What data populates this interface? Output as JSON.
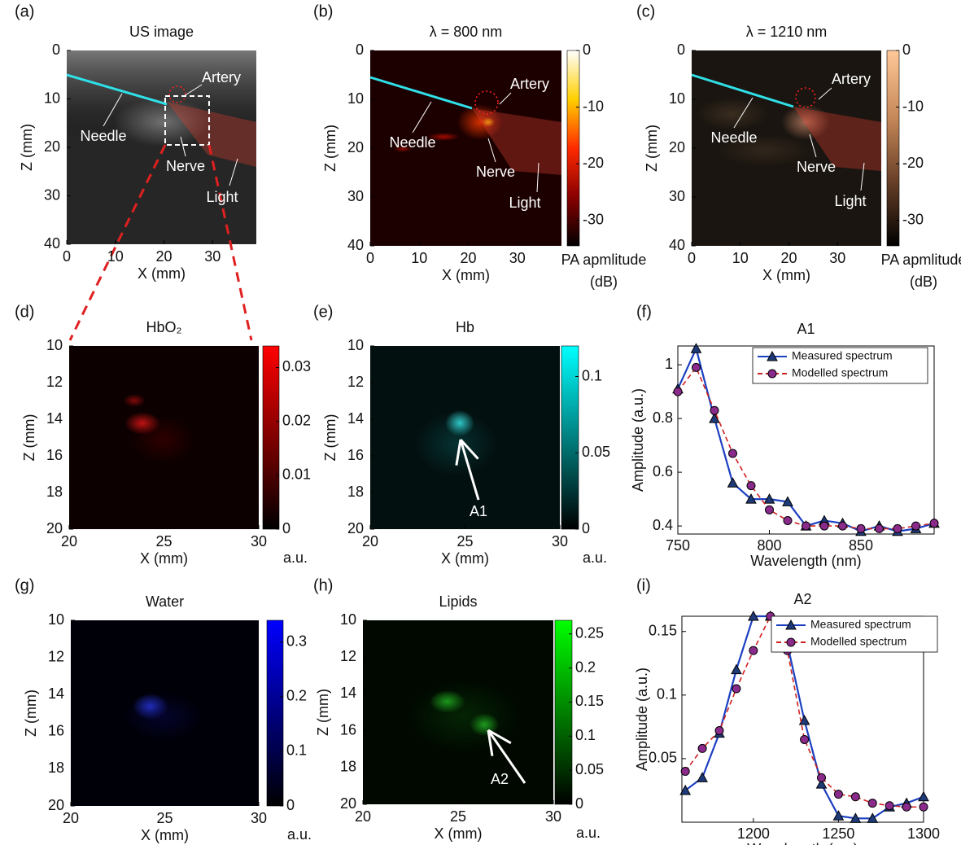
{
  "panels": [
    {
      "letter": "(a)",
      "title": "US image",
      "xlabel": "X (mm)",
      "ylabel": "Z (mm)",
      "xlim": [
        0,
        39
      ],
      "xticks": [
        0,
        10,
        20,
        30
      ],
      "zlim": [
        0,
        40
      ],
      "zticks": [
        0,
        10,
        20,
        30,
        40
      ],
      "annotations": [
        "Artery",
        "Needle",
        "Nerve",
        "Light"
      ]
    },
    {
      "letter": "(b)",
      "title": "λ = 800 nm",
      "xlabel": "X (mm)",
      "ylabel": "Z (mm)",
      "xlim": [
        0,
        39
      ],
      "xticks": [
        0,
        10,
        20,
        30
      ],
      "zlim": [
        0,
        40
      ],
      "zticks": [
        0,
        10,
        20,
        30,
        40
      ],
      "annotations": [
        "Artery",
        "Needle",
        "Nerve",
        "Light"
      ],
      "colorbar": {
        "lim": [
          -34.5,
          0
        ],
        "ticks": [
          0,
          -10,
          -20,
          -30
        ],
        "label": [
          "PA apmlitude",
          "(dB)"
        ],
        "colormap": [
          "#000000",
          "#8a0000",
          "#ff2a00",
          "#ffd000",
          "#ffffff"
        ]
      }
    },
    {
      "letter": "(c)",
      "title": "λ = 1210 nm",
      "xlabel": "X (mm)",
      "ylabel": "Z (mm)",
      "xlim": [
        0,
        39
      ],
      "xticks": [
        0,
        10,
        20,
        30
      ],
      "zlim": [
        0,
        40
      ],
      "zticks": [
        0,
        10,
        20,
        30,
        40
      ],
      "annotations": [
        "Artery",
        "Needle",
        "Nerve",
        "Light"
      ],
      "colorbar": {
        "lim": [
          -34.5,
          0
        ],
        "ticks": [
          0,
          -10,
          -20,
          -30
        ],
        "label": [
          "PA apmlitude",
          "(dB)"
        ],
        "colormap": [
          "#000000",
          "#6a4028",
          "#c88a5a",
          "#ffc898"
        ]
      }
    },
    {
      "letter": "(d)",
      "title": "HbO₂",
      "xlabel": "X (mm)",
      "ylabel": "Z (mm)",
      "xlim": [
        20,
        30
      ],
      "xticks": [
        20,
        25,
        30
      ],
      "zlim": [
        10,
        20
      ],
      "zticks": [
        10,
        12,
        14,
        16,
        18,
        20
      ],
      "annotations": [],
      "colorbar": {
        "lim": [
          0,
          0.034
        ],
        "ticks": [
          0.03,
          0.02,
          0.01,
          0
        ],
        "label": [
          "a.u."
        ],
        "colormap": [
          "#000000",
          "#ff0000"
        ]
      }
    },
    {
      "letter": "(e)",
      "title": "Hb",
      "xlabel": "X (mm)",
      "ylabel": "Z (mm)",
      "xlim": [
        20,
        30
      ],
      "xticks": [
        20,
        25,
        30
      ],
      "zlim": [
        10,
        20
      ],
      "zticks": [
        10,
        12,
        14,
        16,
        18,
        20
      ],
      "annotations": [
        "A1"
      ],
      "colorbar": {
        "lim": [
          0,
          0.12
        ],
        "ticks": [
          0.1,
          0.05,
          0
        ],
        "label": [
          "a.u."
        ],
        "colormap": [
          "#000000",
          "#00ffff"
        ]
      }
    },
    {
      "letter": "(g)",
      "title": "Water",
      "xlabel": "X (mm)",
      "ylabel": "Z (mm)",
      "xlim": [
        20,
        30
      ],
      "xticks": [
        20,
        25,
        30
      ],
      "zlim": [
        10,
        20
      ],
      "zticks": [
        10,
        12,
        14,
        16,
        18,
        20
      ],
      "annotations": [],
      "colorbar": {
        "lim": [
          0,
          0.34
        ],
        "ticks": [
          0.3,
          0.2,
          0.1,
          0
        ],
        "label": [
          "a.u."
        ],
        "colormap": [
          "#000000",
          "#0000ff"
        ]
      }
    },
    {
      "letter": "(h)",
      "title": "Lipids",
      "xlabel": "X (mm)",
      "ylabel": "Z (mm)",
      "xlim": [
        20,
        30
      ],
      "xticks": [
        20,
        25,
        30
      ],
      "zlim": [
        10,
        20
      ],
      "zticks": [
        10,
        12,
        14,
        16,
        18,
        20
      ],
      "annotations": [
        "A2"
      ],
      "colorbar": {
        "lim": [
          0,
          0.27
        ],
        "ticks": [
          0.25,
          0.2,
          0.15,
          0.1,
          0.05,
          0
        ],
        "label": [
          "a.u."
        ],
        "colormap": [
          "#000000",
          "#00ff00"
        ]
      }
    }
  ],
  "chart_data": [
    {
      "type": "line",
      "letter": "(f)",
      "title": "A1",
      "xlabel": "Wavelength (nm)",
      "ylabel": "Amplitude (a.u.)",
      "x": [
        750,
        760,
        770,
        780,
        790,
        800,
        810,
        820,
        830,
        840,
        850,
        860,
        870,
        880,
        890
      ],
      "xlim": [
        750,
        890
      ],
      "xticks": [
        750,
        800,
        850
      ],
      "ylim": [
        0.37,
        1.07
      ],
      "yticks": [
        0.4,
        0.6,
        0.8,
        1
      ],
      "legend": "upper right",
      "series": [
        {
          "name": "Measured spectrum",
          "color": "#1c3fc0",
          "marker": "triangle",
          "marker_color": "#1f3a78",
          "dashed": false,
          "values": [
            0.91,
            1.06,
            0.8,
            0.56,
            0.5,
            0.5,
            0.49,
            0.4,
            0.42,
            0.41,
            0.38,
            0.4,
            0.38,
            0.39,
            0.41
          ]
        },
        {
          "name": "Modelled spectrum",
          "color": "#d02020",
          "marker": "circle",
          "marker_color": "#8a2a8a",
          "dashed": true,
          "values": [
            0.9,
            0.99,
            0.83,
            0.67,
            0.55,
            0.46,
            0.42,
            0.4,
            0.4,
            0.4,
            0.39,
            0.39,
            0.39,
            0.4,
            0.41
          ]
        }
      ]
    },
    {
      "type": "line",
      "letter": "(i)",
      "title": "A2",
      "xlabel": "Wavelength (nm)",
      "ylabel": "Amplitude (a.u.)",
      "x": [
        1160,
        1170,
        1180,
        1190,
        1200,
        1210,
        1220,
        1230,
        1240,
        1250,
        1260,
        1270,
        1280,
        1290,
        1300
      ],
      "xlim": [
        1158,
        1300
      ],
      "xticks": [
        1200,
        1250,
        1300
      ],
      "ylim": [
        0,
        0.162
      ],
      "yticks": [
        0.05,
        0.1,
        0.15
      ],
      "legend": "upper right",
      "series": [
        {
          "name": "Measured spectrum",
          "color": "#1c3fc0",
          "marker": "triangle",
          "marker_color": "#1f3a78",
          "dashed": false,
          "values": [
            0.025,
            0.035,
            0.07,
            0.12,
            0.162,
            0.162,
            0.14,
            0.08,
            0.03,
            0.005,
            0.003,
            0.003,
            0.012,
            0.015,
            0.02
          ]
        },
        {
          "name": "Modelled spectrum",
          "color": "#d02020",
          "marker": "circle",
          "marker_color": "#8a2a8a",
          "dashed": true,
          "values": [
            0.04,
            0.058,
            0.072,
            0.105,
            0.135,
            0.162,
            0.135,
            0.065,
            0.035,
            0.022,
            0.02,
            0.015,
            0.013,
            0.012,
            0.012
          ]
        }
      ]
    }
  ]
}
